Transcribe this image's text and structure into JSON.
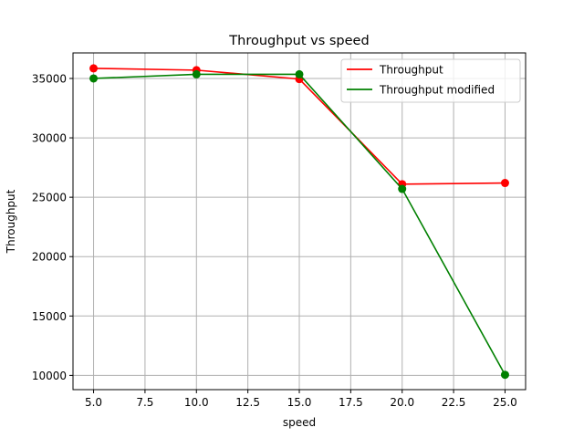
{
  "chart_data": {
    "type": "line",
    "title": "Throughput vs speed",
    "xlabel": "speed",
    "ylabel": "Throughput",
    "x": [
      5.0,
      10.0,
      15.0,
      20.0,
      25.0
    ],
    "series": [
      {
        "name": "Throughput",
        "color": "#ff0000",
        "values": [
          35850,
          35700,
          34950,
          26100,
          26200
        ]
      },
      {
        "name": "Throughput modified",
        "color": "#008000",
        "values": [
          35000,
          35350,
          35350,
          25700,
          10050
        ]
      }
    ],
    "xlim": [
      4.0,
      26.0
    ],
    "ylim": [
      8800,
      37150
    ],
    "xticks": [
      5.0,
      7.5,
      10.0,
      12.5,
      15.0,
      17.5,
      20.0,
      22.5,
      25.0
    ],
    "xtick_labels": [
      "5.0",
      "7.5",
      "10.0",
      "12.5",
      "15.0",
      "17.5",
      "20.0",
      "22.5",
      "25.0"
    ],
    "yticks": [
      10000,
      15000,
      20000,
      25000,
      30000,
      35000
    ],
    "ytick_labels": [
      "10000",
      "15000",
      "20000",
      "25000",
      "30000",
      "35000"
    ],
    "grid": true,
    "markers": "circle",
    "legend_position": "upper-right"
  }
}
